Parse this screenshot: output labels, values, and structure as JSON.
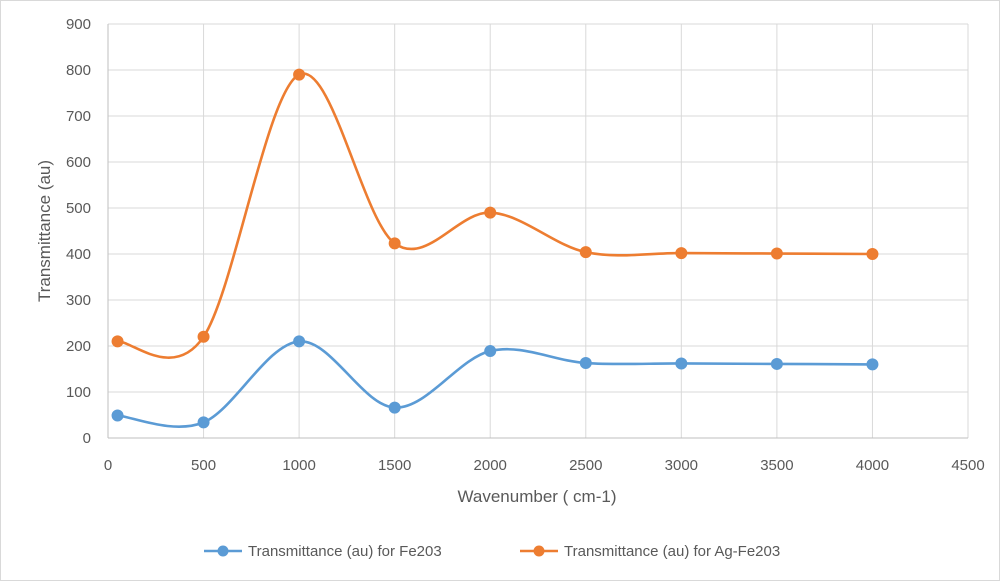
{
  "chart_data": {
    "type": "line",
    "smooth": true,
    "markers": true,
    "title": "",
    "xlabel": "Wavenumber ( cm-1)",
    "ylabel": "Transmittance (au)",
    "xlim": [
      0,
      4500
    ],
    "ylim": [
      0,
      900
    ],
    "xticks": [
      0,
      500,
      1000,
      1500,
      2000,
      2500,
      3000,
      3500,
      4000,
      4500
    ],
    "yticks": [
      0,
      100,
      200,
      300,
      400,
      500,
      600,
      700,
      800,
      900
    ],
    "grid": true,
    "legend_position": "bottom",
    "x": [
      50,
      500,
      1000,
      1500,
      2000,
      2500,
      3000,
      3500,
      4000
    ],
    "series": [
      {
        "name": "Transmittance (au) for Fe203",
        "color": "#5b9bd5",
        "values": [
          49,
          34,
          210,
          66,
          189,
          163,
          162,
          161,
          160
        ]
      },
      {
        "name": "Transmittance (au) for Ag-Fe203",
        "color": "#ed7d31",
        "values": [
          210,
          220,
          790,
          423,
          490,
          404,
          402,
          401,
          400
        ]
      }
    ]
  }
}
